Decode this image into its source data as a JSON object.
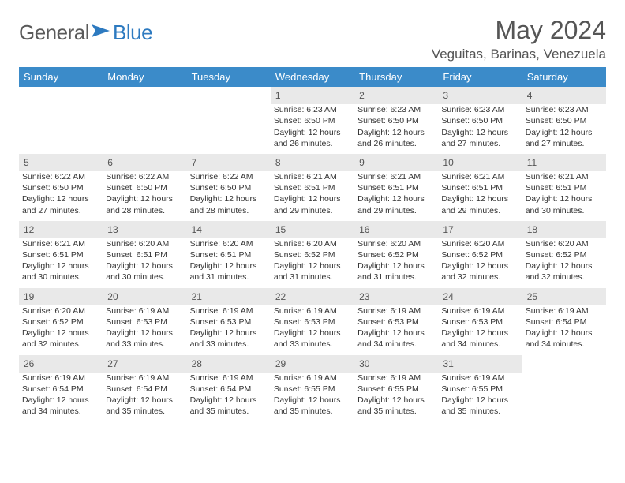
{
  "logo": {
    "text1": "General",
    "text2": "Blue"
  },
  "title": "May 2024",
  "location": "Veguitas, Barinas, Venezuela",
  "header_bg": "#3b8bc9",
  "header_fg": "#ffffff",
  "daynum_bg": "#e9e9e9",
  "text_color": "#333333",
  "days": [
    "Sunday",
    "Monday",
    "Tuesday",
    "Wednesday",
    "Thursday",
    "Friday",
    "Saturday"
  ],
  "weeks": [
    [
      null,
      null,
      null,
      {
        "n": "1",
        "sr": "Sunrise: 6:23 AM",
        "ss": "Sunset: 6:50 PM",
        "d1": "Daylight: 12 hours",
        "d2": "and 26 minutes."
      },
      {
        "n": "2",
        "sr": "Sunrise: 6:23 AM",
        "ss": "Sunset: 6:50 PM",
        "d1": "Daylight: 12 hours",
        "d2": "and 26 minutes."
      },
      {
        "n": "3",
        "sr": "Sunrise: 6:23 AM",
        "ss": "Sunset: 6:50 PM",
        "d1": "Daylight: 12 hours",
        "d2": "and 27 minutes."
      },
      {
        "n": "4",
        "sr": "Sunrise: 6:23 AM",
        "ss": "Sunset: 6:50 PM",
        "d1": "Daylight: 12 hours",
        "d2": "and 27 minutes."
      }
    ],
    [
      {
        "n": "5",
        "sr": "Sunrise: 6:22 AM",
        "ss": "Sunset: 6:50 PM",
        "d1": "Daylight: 12 hours",
        "d2": "and 27 minutes."
      },
      {
        "n": "6",
        "sr": "Sunrise: 6:22 AM",
        "ss": "Sunset: 6:50 PM",
        "d1": "Daylight: 12 hours",
        "d2": "and 28 minutes."
      },
      {
        "n": "7",
        "sr": "Sunrise: 6:22 AM",
        "ss": "Sunset: 6:50 PM",
        "d1": "Daylight: 12 hours",
        "d2": "and 28 minutes."
      },
      {
        "n": "8",
        "sr": "Sunrise: 6:21 AM",
        "ss": "Sunset: 6:51 PM",
        "d1": "Daylight: 12 hours",
        "d2": "and 29 minutes."
      },
      {
        "n": "9",
        "sr": "Sunrise: 6:21 AM",
        "ss": "Sunset: 6:51 PM",
        "d1": "Daylight: 12 hours",
        "d2": "and 29 minutes."
      },
      {
        "n": "10",
        "sr": "Sunrise: 6:21 AM",
        "ss": "Sunset: 6:51 PM",
        "d1": "Daylight: 12 hours",
        "d2": "and 29 minutes."
      },
      {
        "n": "11",
        "sr": "Sunrise: 6:21 AM",
        "ss": "Sunset: 6:51 PM",
        "d1": "Daylight: 12 hours",
        "d2": "and 30 minutes."
      }
    ],
    [
      {
        "n": "12",
        "sr": "Sunrise: 6:21 AM",
        "ss": "Sunset: 6:51 PM",
        "d1": "Daylight: 12 hours",
        "d2": "and 30 minutes."
      },
      {
        "n": "13",
        "sr": "Sunrise: 6:20 AM",
        "ss": "Sunset: 6:51 PM",
        "d1": "Daylight: 12 hours",
        "d2": "and 30 minutes."
      },
      {
        "n": "14",
        "sr": "Sunrise: 6:20 AM",
        "ss": "Sunset: 6:51 PM",
        "d1": "Daylight: 12 hours",
        "d2": "and 31 minutes."
      },
      {
        "n": "15",
        "sr": "Sunrise: 6:20 AM",
        "ss": "Sunset: 6:52 PM",
        "d1": "Daylight: 12 hours",
        "d2": "and 31 minutes."
      },
      {
        "n": "16",
        "sr": "Sunrise: 6:20 AM",
        "ss": "Sunset: 6:52 PM",
        "d1": "Daylight: 12 hours",
        "d2": "and 31 minutes."
      },
      {
        "n": "17",
        "sr": "Sunrise: 6:20 AM",
        "ss": "Sunset: 6:52 PM",
        "d1": "Daylight: 12 hours",
        "d2": "and 32 minutes."
      },
      {
        "n": "18",
        "sr": "Sunrise: 6:20 AM",
        "ss": "Sunset: 6:52 PM",
        "d1": "Daylight: 12 hours",
        "d2": "and 32 minutes."
      }
    ],
    [
      {
        "n": "19",
        "sr": "Sunrise: 6:20 AM",
        "ss": "Sunset: 6:52 PM",
        "d1": "Daylight: 12 hours",
        "d2": "and 32 minutes."
      },
      {
        "n": "20",
        "sr": "Sunrise: 6:19 AM",
        "ss": "Sunset: 6:53 PM",
        "d1": "Daylight: 12 hours",
        "d2": "and 33 minutes."
      },
      {
        "n": "21",
        "sr": "Sunrise: 6:19 AM",
        "ss": "Sunset: 6:53 PM",
        "d1": "Daylight: 12 hours",
        "d2": "and 33 minutes."
      },
      {
        "n": "22",
        "sr": "Sunrise: 6:19 AM",
        "ss": "Sunset: 6:53 PM",
        "d1": "Daylight: 12 hours",
        "d2": "and 33 minutes."
      },
      {
        "n": "23",
        "sr": "Sunrise: 6:19 AM",
        "ss": "Sunset: 6:53 PM",
        "d1": "Daylight: 12 hours",
        "d2": "and 34 minutes."
      },
      {
        "n": "24",
        "sr": "Sunrise: 6:19 AM",
        "ss": "Sunset: 6:53 PM",
        "d1": "Daylight: 12 hours",
        "d2": "and 34 minutes."
      },
      {
        "n": "25",
        "sr": "Sunrise: 6:19 AM",
        "ss": "Sunset: 6:54 PM",
        "d1": "Daylight: 12 hours",
        "d2": "and 34 minutes."
      }
    ],
    [
      {
        "n": "26",
        "sr": "Sunrise: 6:19 AM",
        "ss": "Sunset: 6:54 PM",
        "d1": "Daylight: 12 hours",
        "d2": "and 34 minutes."
      },
      {
        "n": "27",
        "sr": "Sunrise: 6:19 AM",
        "ss": "Sunset: 6:54 PM",
        "d1": "Daylight: 12 hours",
        "d2": "and 35 minutes."
      },
      {
        "n": "28",
        "sr": "Sunrise: 6:19 AM",
        "ss": "Sunset: 6:54 PM",
        "d1": "Daylight: 12 hours",
        "d2": "and 35 minutes."
      },
      {
        "n": "29",
        "sr": "Sunrise: 6:19 AM",
        "ss": "Sunset: 6:55 PM",
        "d1": "Daylight: 12 hours",
        "d2": "and 35 minutes."
      },
      {
        "n": "30",
        "sr": "Sunrise: 6:19 AM",
        "ss": "Sunset: 6:55 PM",
        "d1": "Daylight: 12 hours",
        "d2": "and 35 minutes."
      },
      {
        "n": "31",
        "sr": "Sunrise: 6:19 AM",
        "ss": "Sunset: 6:55 PM",
        "d1": "Daylight: 12 hours",
        "d2": "and 35 minutes."
      },
      null
    ]
  ]
}
